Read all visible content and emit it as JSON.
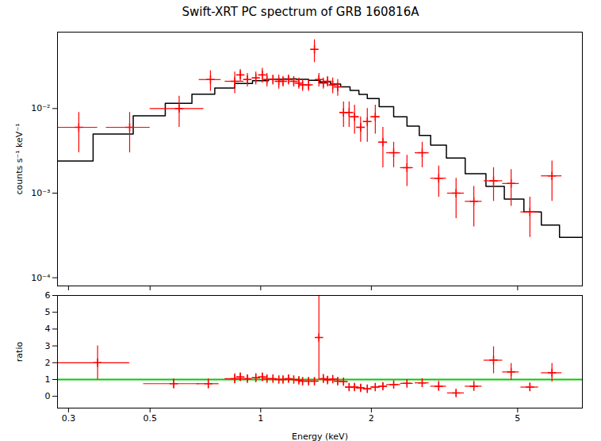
{
  "chart_data": [
    {
      "type": "line",
      "title": "Swift-XRT PC spectrum of GRB 160816A",
      "ylabel": "counts s⁻¹ keV⁻¹",
      "log": true,
      "xlim": [
        0.28,
        7.5
      ],
      "ylim": [
        8e-05,
        0.08
      ],
      "xticks": [
        0.3,
        0.5,
        1,
        2,
        5
      ],
      "yticks": [
        {
          "value": 0.0001,
          "label": "10⁻⁴"
        },
        {
          "value": 0.001,
          "label": "10⁻³"
        },
        {
          "value": 0.01,
          "label": "10⁻²"
        }
      ],
      "tick_labels": "y",
      "series": [
        {
          "type": "line",
          "color": "#000000",
          "x": [
            0.28,
            0.35,
            0.35,
            0.45,
            0.45,
            0.55,
            0.55,
            0.65,
            0.65,
            0.75,
            0.75,
            0.85,
            0.85,
            0.95,
            0.95,
            1.05,
            1.05,
            1.15,
            1.15,
            1.25,
            1.25,
            1.35,
            1.35,
            1.45,
            1.45,
            1.55,
            1.55,
            1.65,
            1.65,
            1.75,
            1.75,
            1.85,
            1.85,
            1.95,
            1.95,
            2.1,
            2.1,
            2.3,
            2.3,
            2.5,
            2.5,
            2.7,
            2.7,
            2.9,
            2.9,
            3.2,
            3.2,
            3.6,
            3.6,
            4.1,
            4.1,
            4.6,
            4.6,
            5.2,
            5.2,
            5.8,
            5.8,
            6.5,
            6.5,
            7.5
          ],
          "values": [
            0.0024,
            0.0024,
            0.005,
            0.005,
            0.0082,
            0.0082,
            0.0115,
            0.0115,
            0.0148,
            0.0148,
            0.0175,
            0.0175,
            0.0198,
            0.0198,
            0.0213,
            0.0213,
            0.0222,
            0.0222,
            0.0224,
            0.0224,
            0.0222,
            0.0222,
            0.0216,
            0.0216,
            0.0207,
            0.0207,
            0.0195,
            0.0195,
            0.018,
            0.018,
            0.0164,
            0.0164,
            0.0147,
            0.0147,
            0.0131,
            0.0131,
            0.0105,
            0.0105,
            0.008,
            0.008,
            0.0062,
            0.0062,
            0.0048,
            0.0048,
            0.0037,
            0.0037,
            0.0026,
            0.0026,
            0.0017,
            0.0017,
            0.0012,
            0.0012,
            0.00085,
            0.00085,
            0.0006,
            0.0006,
            0.00042,
            0.00042,
            0.0003,
            0.0003
          ]
        },
        {
          "type": "scatter",
          "marker": "+",
          "color": "#ff0000",
          "x": [
            0.32,
            0.44,
            0.6,
            0.73,
            0.85,
            0.88,
            0.92,
            0.97,
            1.01,
            1.04,
            1.08,
            1.12,
            1.15,
            1.19,
            1.23,
            1.27,
            1.3,
            1.35,
            1.4,
            1.44,
            1.48,
            1.52,
            1.57,
            1.62,
            1.68,
            1.74,
            1.8,
            1.87,
            1.95,
            2.05,
            2.15,
            2.3,
            2.5,
            2.75,
            3.05,
            3.4,
            3.8,
            4.3,
            4.8,
            5.4,
            6.2
          ],
          "values": [
            0.006,
            0.006,
            0.01,
            0.022,
            0.021,
            0.025,
            0.022,
            0.023,
            0.025,
            0.022,
            0.022,
            0.021,
            0.021,
            0.022,
            0.021,
            0.02,
            0.019,
            0.019,
            0.05,
            0.022,
            0.02,
            0.021,
            0.019,
            0.018,
            0.009,
            0.009,
            0.008,
            0.006,
            0.007,
            0.008,
            0.004,
            0.003,
            0.002,
            0.003,
            0.0015,
            0.001,
            0.0008,
            0.0014,
            0.0013,
            0.0006,
            0.0016
          ],
          "xerr_lo": [
            0.04,
            0.06,
            0.1,
            0.05,
            0.05,
            0.02,
            0.02,
            0.02,
            0.02,
            0.02,
            0.02,
            0.02,
            0.02,
            0.02,
            0.02,
            0.02,
            0.02,
            0.02,
            0.03,
            0.02,
            0.02,
            0.02,
            0.03,
            0.03,
            0.04,
            0.04,
            0.05,
            0.05,
            0.05,
            0.06,
            0.06,
            0.1,
            0.1,
            0.12,
            0.15,
            0.18,
            0.2,
            0.25,
            0.25,
            0.3,
            0.4
          ],
          "xerr_hi": [
            0.04,
            0.06,
            0.1,
            0.05,
            0.05,
            0.02,
            0.02,
            0.02,
            0.02,
            0.02,
            0.02,
            0.02,
            0.02,
            0.02,
            0.02,
            0.02,
            0.02,
            0.02,
            0.03,
            0.02,
            0.02,
            0.02,
            0.03,
            0.03,
            0.04,
            0.04,
            0.05,
            0.05,
            0.05,
            0.06,
            0.06,
            0.1,
            0.1,
            0.12,
            0.15,
            0.18,
            0.2,
            0.25,
            0.25,
            0.3,
            0.4
          ],
          "yerr_lo": [
            0.003,
            0.003,
            0.004,
            0.006,
            0.006,
            0.004,
            0.004,
            0.004,
            0.005,
            0.004,
            0.003,
            0.004,
            0.003,
            0.003,
            0.003,
            0.003,
            0.003,
            0.003,
            0.015,
            0.004,
            0.003,
            0.003,
            0.004,
            0.004,
            0.003,
            0.003,
            0.003,
            0.002,
            0.003,
            0.003,
            0.002,
            0.001,
            0.0008,
            0.001,
            0.0006,
            0.0005,
            0.0004,
            0.0006,
            0.0006,
            0.0003,
            0.0008
          ],
          "yerr_hi": [
            0.003,
            0.003,
            0.004,
            0.006,
            0.006,
            0.004,
            0.004,
            0.004,
            0.005,
            0.004,
            0.003,
            0.004,
            0.003,
            0.003,
            0.003,
            0.003,
            0.003,
            0.003,
            0.015,
            0.004,
            0.003,
            0.003,
            0.004,
            0.004,
            0.003,
            0.003,
            0.003,
            0.002,
            0.003,
            0.003,
            0.002,
            0.001,
            0.0008,
            0.001,
            0.0006,
            0.0005,
            0.0004,
            0.0006,
            0.0006,
            0.0003,
            0.0008
          ]
        }
      ]
    },
    {
      "type": "scatter",
      "xlabel": "Energy (keV)",
      "ylabel": "ratio",
      "log": "x",
      "xlim": [
        0.28,
        7.5
      ],
      "ylim": [
        -0.7,
        6.0
      ],
      "xticks": [
        0.3,
        0.5,
        1,
        2,
        5
      ],
      "yticks": [
        0,
        1,
        2,
        3,
        4,
        5,
        6
      ],
      "series": [
        {
          "type": "hline",
          "color": "#00cc00",
          "values": [
            1.0
          ]
        },
        {
          "type": "scatter",
          "marker": "+",
          "color": "#ff0000",
          "x": [
            0.36,
            0.58,
            0.72,
            0.85,
            0.88,
            0.92,
            0.97,
            1.01,
            1.04,
            1.08,
            1.12,
            1.15,
            1.19,
            1.23,
            1.27,
            1.3,
            1.35,
            1.4,
            1.44,
            1.48,
            1.52,
            1.57,
            1.62,
            1.68,
            1.74,
            1.8,
            1.87,
            1.95,
            2.05,
            2.15,
            2.3,
            2.5,
            2.75,
            3.05,
            3.4,
            3.8,
            4.3,
            4.8,
            5.4,
            6.2
          ],
          "values": [
            2.0,
            0.75,
            0.75,
            1.05,
            1.15,
            1.05,
            1.1,
            1.15,
            1.05,
            1.05,
            1.0,
            1.0,
            1.05,
            1.0,
            0.95,
            0.9,
            0.9,
            0.9,
            3.5,
            1.05,
            0.97,
            1.02,
            0.9,
            0.87,
            0.55,
            0.55,
            0.5,
            0.45,
            0.55,
            0.6,
            0.7,
            0.77,
            0.8,
            0.6,
            0.2,
            0.6,
            2.15,
            1.45,
            0.55,
            1.4
          ],
          "xerr_lo": [
            0.08,
            0.1,
            0.05,
            0.05,
            0.02,
            0.02,
            0.02,
            0.02,
            0.02,
            0.02,
            0.02,
            0.02,
            0.02,
            0.02,
            0.02,
            0.02,
            0.02,
            0.03,
            0.02,
            0.02,
            0.02,
            0.03,
            0.03,
            0.04,
            0.04,
            0.05,
            0.05,
            0.05,
            0.06,
            0.06,
            0.1,
            0.1,
            0.12,
            0.15,
            0.18,
            0.2,
            0.25,
            0.25,
            0.3,
            0.4
          ],
          "xerr_hi": [
            0.08,
            0.1,
            0.05,
            0.05,
            0.02,
            0.02,
            0.02,
            0.02,
            0.02,
            0.02,
            0.02,
            0.02,
            0.02,
            0.02,
            0.02,
            0.02,
            0.02,
            0.03,
            0.02,
            0.02,
            0.02,
            0.03,
            0.03,
            0.04,
            0.04,
            0.05,
            0.05,
            0.05,
            0.06,
            0.06,
            0.1,
            0.1,
            0.12,
            0.15,
            0.18,
            0.2,
            0.25,
            0.25,
            0.3,
            0.4
          ],
          "yerr_lo": [
            1.0,
            0.3,
            0.3,
            0.3,
            0.25,
            0.2,
            0.25,
            0.25,
            0.2,
            0.2,
            0.2,
            0.2,
            0.2,
            0.2,
            0.2,
            0.2,
            0.2,
            0.2,
            2.5,
            0.25,
            0.2,
            0.2,
            0.2,
            0.2,
            0.2,
            0.2,
            0.2,
            0.2,
            0.2,
            0.2,
            0.2,
            0.2,
            0.25,
            0.3,
            0.2,
            0.3,
            0.8,
            0.5,
            0.25,
            0.55
          ],
          "yerr_hi": [
            1.0,
            0.3,
            0.3,
            0.3,
            0.25,
            0.2,
            0.25,
            0.25,
            0.2,
            0.2,
            0.2,
            0.2,
            0.2,
            0.2,
            0.2,
            0.2,
            0.2,
            0.2,
            2.5,
            0.25,
            0.2,
            0.2,
            0.2,
            0.2,
            0.2,
            0.2,
            0.2,
            0.2,
            0.2,
            0.2,
            0.2,
            0.2,
            0.25,
            0.3,
            0.2,
            0.3,
            0.8,
            0.5,
            0.25,
            0.55
          ]
        }
      ]
    }
  ]
}
